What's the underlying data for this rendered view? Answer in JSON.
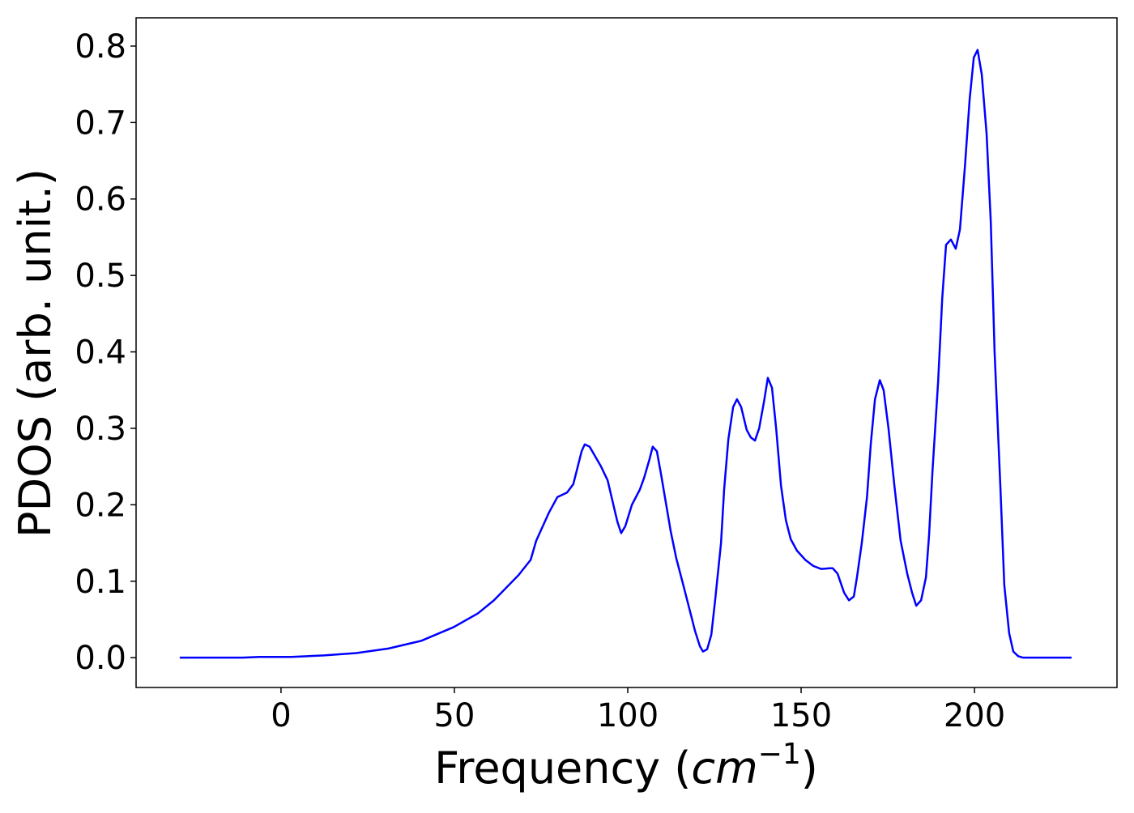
{
  "chart_data": {
    "type": "line",
    "xlabel": [
      "Frequency (",
      "cm",
      "−1",
      ")"
    ],
    "ylabel": "PDOS (arb. unit.)",
    "x": [
      -29.2,
      -11,
      -6.3,
      3,
      12.4,
      21.7,
      31,
      40.4,
      49.8,
      56.8,
      61.4,
      68.5,
      72,
      73.6,
      77.3,
      79.7,
      82.5,
      84.3,
      86.7,
      87.6,
      89,
      92.3,
      94.2,
      97,
      98.1,
      99.3,
      101.2,
      103.5,
      104.7,
      106.3,
      107.2,
      108.4,
      109.6,
      112.4,
      114,
      115.9,
      118,
      119.4,
      120.8,
      121.7,
      122.9,
      124.1,
      125.2,
      126.9,
      127.8,
      129,
      130.4,
      131.5,
      132.7,
      134.3,
      135.5,
      136.7,
      137.9,
      139.3,
      140.4,
      141.6,
      142.8,
      144.2,
      145.6,
      147,
      148.8,
      151.2,
      153.5,
      155.8,
      158.2,
      159.1,
      160.5,
      162.4,
      163.8,
      165.2,
      166.1,
      167.5,
      169,
      170.1,
      171.3,
      172.7,
      173.8,
      175.2,
      176.9,
      178.7,
      180.6,
      182,
      183.2,
      184.6,
      186,
      186.9,
      187.9,
      189.5,
      190.7,
      191.8,
      193.2,
      194.6,
      195.8,
      197.2,
      198.6,
      199.8,
      200.9,
      202.1,
      203.5,
      204.7,
      205.8,
      207.5,
      208.6,
      210,
      211.2,
      212.6,
      214,
      228
    ],
    "series": [
      {
        "color": "#0000ff",
        "values": [
          0,
          0,
          0.001,
          0.001,
          0.003,
          0.006,
          0.012,
          0.022,
          0.04,
          0.058,
          0.075,
          0.108,
          0.128,
          0.153,
          0.19,
          0.21,
          0.216,
          0.227,
          0.27,
          0.279,
          0.276,
          0.25,
          0.232,
          0.178,
          0.163,
          0.172,
          0.2,
          0.22,
          0.235,
          0.26,
          0.276,
          0.27,
          0.24,
          0.165,
          0.13,
          0.097,
          0.06,
          0.035,
          0.015,
          0.008,
          0.011,
          0.03,
          0.075,
          0.15,
          0.22,
          0.285,
          0.328,
          0.338,
          0.328,
          0.298,
          0.288,
          0.284,
          0.3,
          0.335,
          0.366,
          0.353,
          0.3,
          0.225,
          0.18,
          0.155,
          0.14,
          0.128,
          0.12,
          0.116,
          0.117,
          0.117,
          0.11,
          0.085,
          0.075,
          0.08,
          0.105,
          0.15,
          0.21,
          0.28,
          0.338,
          0.363,
          0.35,
          0.3,
          0.225,
          0.153,
          0.11,
          0.085,
          0.068,
          0.075,
          0.105,
          0.16,
          0.245,
          0.36,
          0.47,
          0.54,
          0.547,
          0.535,
          0.56,
          0.64,
          0.73,
          0.785,
          0.795,
          0.763,
          0.685,
          0.57,
          0.4,
          0.22,
          0.095,
          0.032,
          0.008,
          0.002,
          0,
          0
        ]
      }
    ],
    "xlim": [
      -41.8,
      241.1
    ],
    "ylim": [
      -0.039,
      0.837
    ],
    "xticks": [
      0,
      50,
      100,
      150,
      200
    ],
    "yticks": [
      {
        "value": 0,
        "label": "0.0"
      },
      0.1,
      0.2,
      0.3,
      0.4,
      0.5,
      0.6,
      0.7,
      0.8
    ]
  }
}
